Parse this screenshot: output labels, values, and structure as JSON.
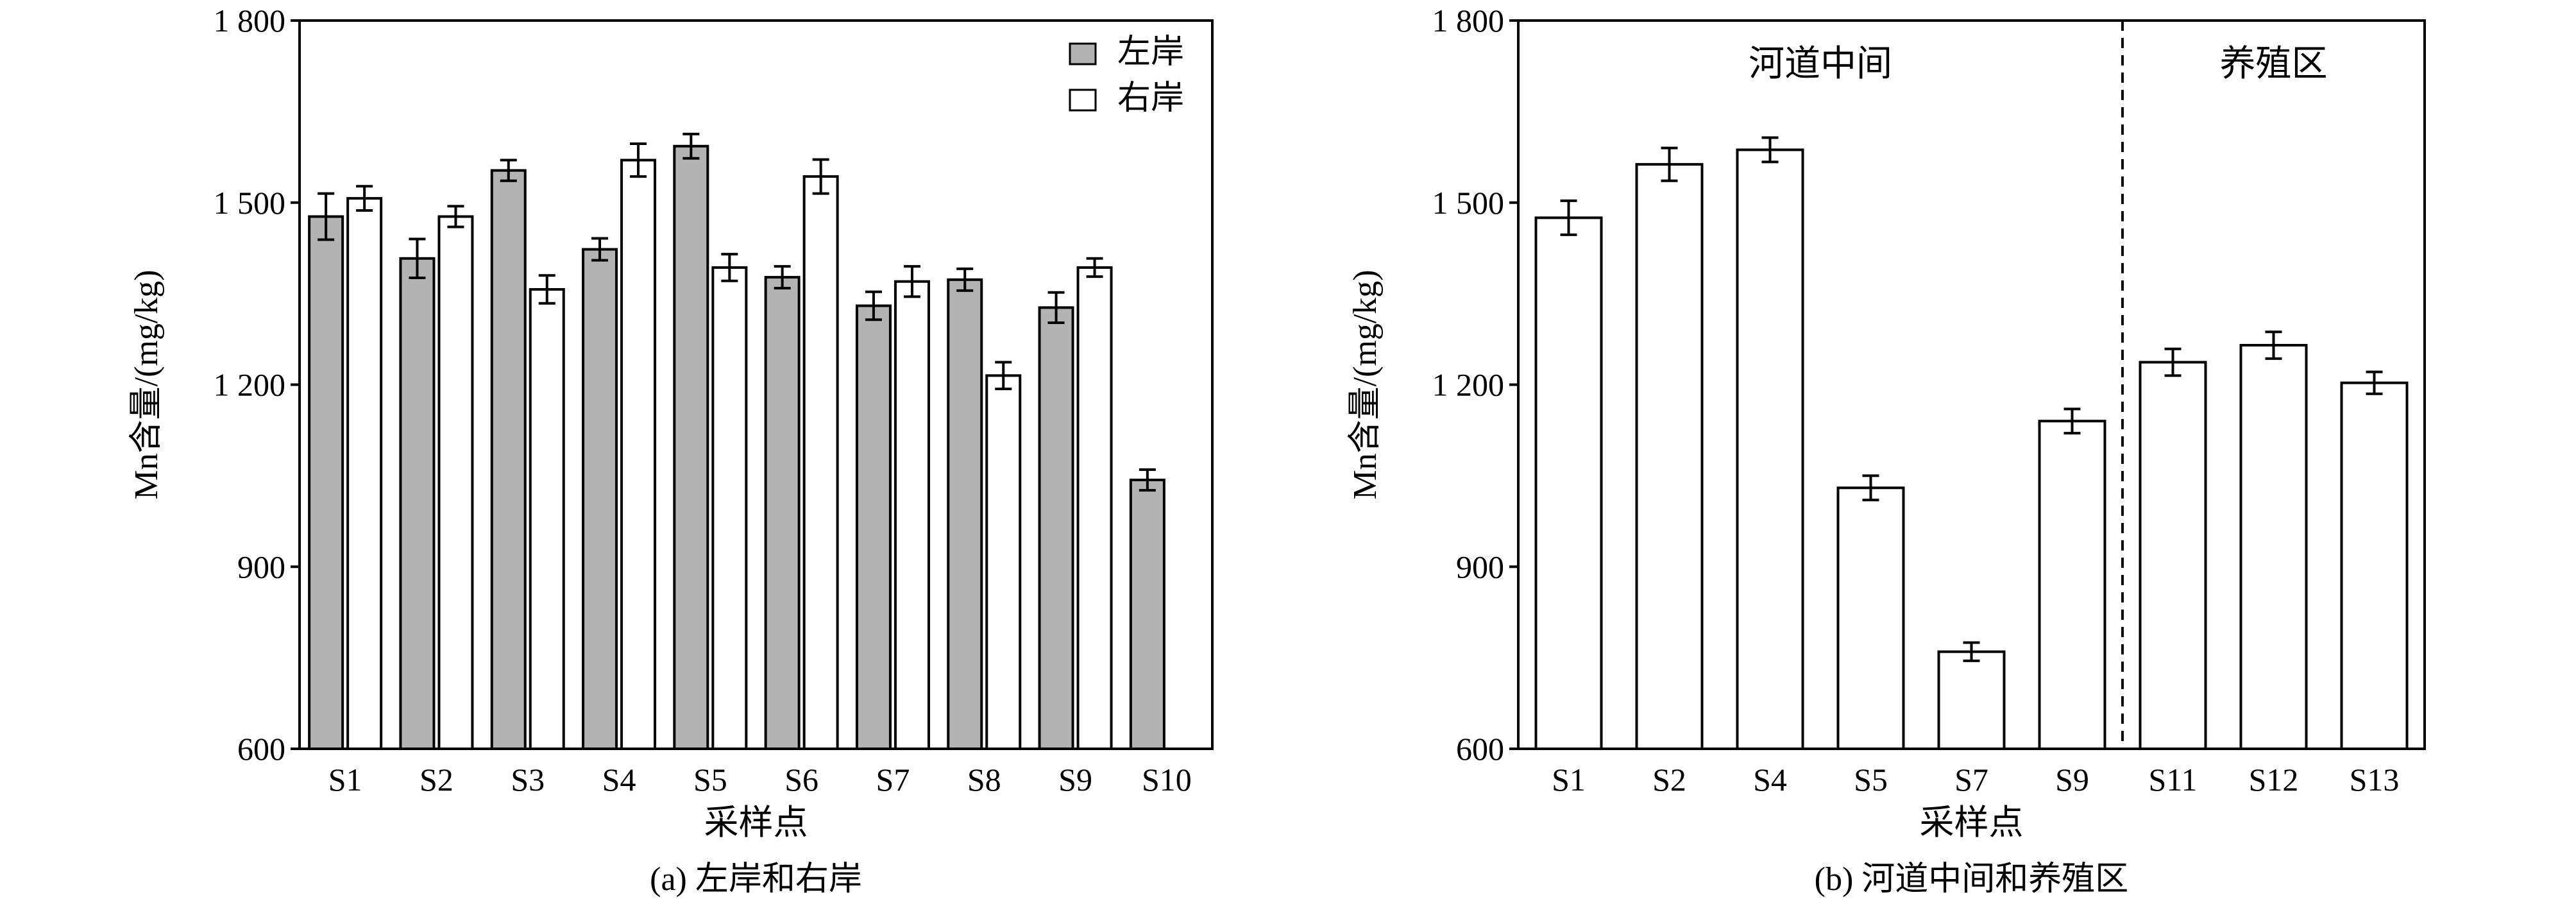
{
  "chart_data": [
    {
      "type": "bar",
      "caption": "(a) 左岸和右岸",
      "xlabel": "采样点",
      "ylabel": "Mn含量/(mg/kg)",
      "ylim": [
        600,
        1800
      ],
      "yticks": [
        600,
        900,
        1200,
        1500,
        1800
      ],
      "ytick_labels": [
        "600",
        "900",
        "1 200",
        "1 500",
        "1 800"
      ],
      "categories": [
        "S1",
        "S2",
        "S3",
        "S4",
        "S5",
        "S6",
        "S7",
        "S8",
        "S9",
        "S10"
      ],
      "legend_position": "top-right",
      "series": [
        {
          "name": "左岸",
          "color": "#b3b3b3",
          "values": [
            1477,
            1408,
            1553,
            1423,
            1593,
            1377,
            1330,
            1373,
            1327,
            1043
          ],
          "errors": [
            38,
            32,
            17,
            18,
            20,
            18,
            23,
            18,
            25,
            17
          ]
        },
        {
          "name": "右岸",
          "color": "#ffffff",
          "values": [
            1507,
            1477,
            1357,
            1570,
            1393,
            1543,
            1370,
            1215,
            1393,
            null
          ],
          "errors": [
            20,
            17,
            23,
            27,
            22,
            28,
            25,
            22,
            15,
            null
          ]
        }
      ]
    },
    {
      "type": "bar",
      "caption": "(b) 河道中间和养殖区",
      "xlabel": "采样点",
      "ylabel": "Mn含量/(mg/kg)",
      "ylim": [
        600,
        1800
      ],
      "yticks": [
        600,
        900,
        1200,
        1500,
        1800
      ],
      "ytick_labels": [
        "600",
        "900",
        "1 200",
        "1 500",
        "1 800"
      ],
      "categories": [
        "S1",
        "S2",
        "S4",
        "S5",
        "S7",
        "S9",
        "S11",
        "S12",
        "S13"
      ],
      "regions": [
        "河道中间",
        "养殖区"
      ],
      "region_split_after_index": 5,
      "series": [
        {
          "color": "#ffffff",
          "values": [
            1475,
            1563,
            1587,
            1030,
            760,
            1140,
            1237,
            1265,
            1203
          ],
          "errors": [
            28,
            27,
            20,
            20,
            15,
            20,
            22,
            22,
            18
          ]
        }
      ]
    }
  ]
}
